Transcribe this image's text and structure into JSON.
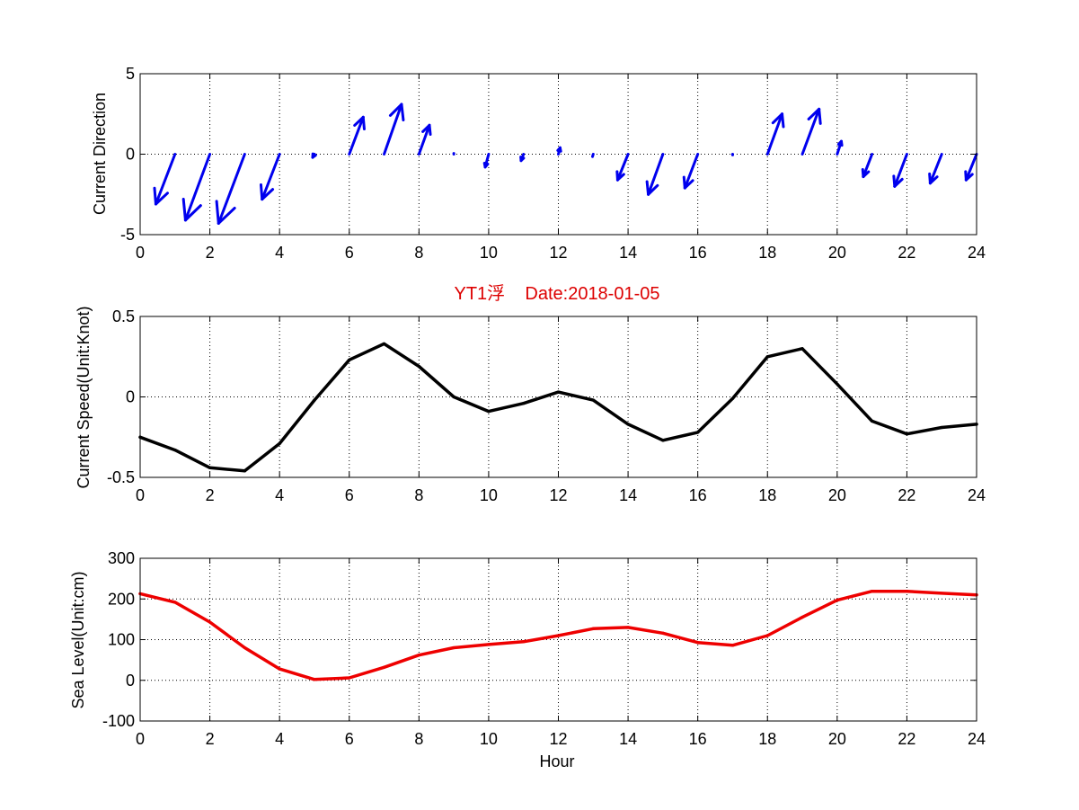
{
  "chart_data": [
    {
      "type": "quiver",
      "ylabel": "Current Direction",
      "xlim": [
        0,
        24
      ],
      "ylim": [
        -5,
        5
      ],
      "x_ticks": [
        "0",
        "2",
        "4",
        "6",
        "8",
        "10",
        "12",
        "14",
        "16",
        "18",
        "20",
        "22",
        "24"
      ],
      "y_ticks": [
        "-5",
        "0",
        "5"
      ],
      "grid": true,
      "color": "#0000ee",
      "vectors": [
        {
          "x": 1,
          "u": -0.55,
          "v": -3.1
        },
        {
          "x": 2,
          "u": -0.7,
          "v": -4.1
        },
        {
          "x": 3,
          "u": -0.75,
          "v": -4.3
        },
        {
          "x": 4,
          "u": -0.5,
          "v": -2.8
        },
        {
          "x": 5,
          "u": -0.05,
          "v": -0.2
        },
        {
          "x": 6,
          "u": 0.4,
          "v": 2.3
        },
        {
          "x": 7,
          "u": 0.5,
          "v": 3.1
        },
        {
          "x": 8,
          "u": 0.3,
          "v": 1.8
        },
        {
          "x": 9,
          "u": 0.0,
          "v": 0.05
        },
        {
          "x": 10,
          "u": -0.1,
          "v": -0.8
        },
        {
          "x": 11,
          "u": -0.07,
          "v": -0.4
        },
        {
          "x": 12,
          "u": 0.05,
          "v": 0.4
        },
        {
          "x": 13,
          "u": -0.02,
          "v": -0.15
        },
        {
          "x": 14,
          "u": -0.3,
          "v": -1.6
        },
        {
          "x": 15,
          "u": -0.42,
          "v": -2.5
        },
        {
          "x": 16,
          "u": -0.37,
          "v": -2.1
        },
        {
          "x": 17,
          "u": 0.0,
          "v": -0.05
        },
        {
          "x": 18,
          "u": 0.42,
          "v": 2.5
        },
        {
          "x": 19,
          "u": 0.48,
          "v": 2.8
        },
        {
          "x": 20,
          "u": 0.12,
          "v": 0.8
        },
        {
          "x": 21,
          "u": -0.25,
          "v": -1.4
        },
        {
          "x": 22,
          "u": -0.35,
          "v": -2.0
        },
        {
          "x": 23,
          "u": -0.33,
          "v": -1.8
        },
        {
          "x": 24,
          "u": -0.3,
          "v": -1.6
        }
      ]
    },
    {
      "type": "line",
      "title": "YT1浮    Date:2018-01-05",
      "title_color": "#dd0000",
      "ylabel": "Current Speed(Unit:Knot)",
      "xlim": [
        0,
        24
      ],
      "ylim": [
        -0.5,
        0.5
      ],
      "x_ticks": [
        "0",
        "2",
        "4",
        "6",
        "8",
        "10",
        "12",
        "14",
        "16",
        "18",
        "20",
        "22",
        "24"
      ],
      "y_ticks": [
        "-0.5",
        "0",
        "0.5"
      ],
      "grid": true,
      "series": [
        {
          "color": "#000000",
          "x": [
            0,
            1,
            2,
            3,
            4,
            5,
            6,
            7,
            8,
            9,
            10,
            11,
            12,
            13,
            14,
            15,
            16,
            17,
            18,
            19,
            20,
            21,
            22,
            23,
            24
          ],
          "values": [
            -0.25,
            -0.33,
            -0.44,
            -0.46,
            -0.29,
            -0.02,
            0.23,
            0.33,
            0.19,
            0.0,
            -0.09,
            -0.04,
            0.03,
            -0.02,
            -0.17,
            -0.27,
            -0.22,
            -0.01,
            0.25,
            0.3,
            0.08,
            -0.15,
            -0.23,
            -0.19,
            -0.17
          ]
        }
      ]
    },
    {
      "type": "line",
      "ylabel": "Sea Level(Unit:cm)",
      "xlabel": "Hour",
      "xlim": [
        0,
        24
      ],
      "ylim": [
        -100,
        300
      ],
      "x_ticks": [
        "0",
        "2",
        "4",
        "6",
        "8",
        "10",
        "12",
        "14",
        "16",
        "18",
        "20",
        "22",
        "24"
      ],
      "y_ticks": [
        "-100",
        "0",
        "100",
        "200",
        "300"
      ],
      "grid": true,
      "series": [
        {
          "color": "#ee0000",
          "x": [
            0,
            1,
            2,
            3,
            4,
            5,
            6,
            7,
            8,
            9,
            10,
            11,
            12,
            13,
            14,
            15,
            16,
            17,
            18,
            19,
            20,
            21,
            22,
            23,
            24
          ],
          "values": [
            213,
            192,
            143,
            80,
            28,
            2,
            6,
            32,
            62,
            80,
            88,
            95,
            110,
            127,
            130,
            116,
            93,
            86,
            110,
            155,
            197,
            219,
            219,
            214,
            210
          ]
        }
      ]
    }
  ]
}
